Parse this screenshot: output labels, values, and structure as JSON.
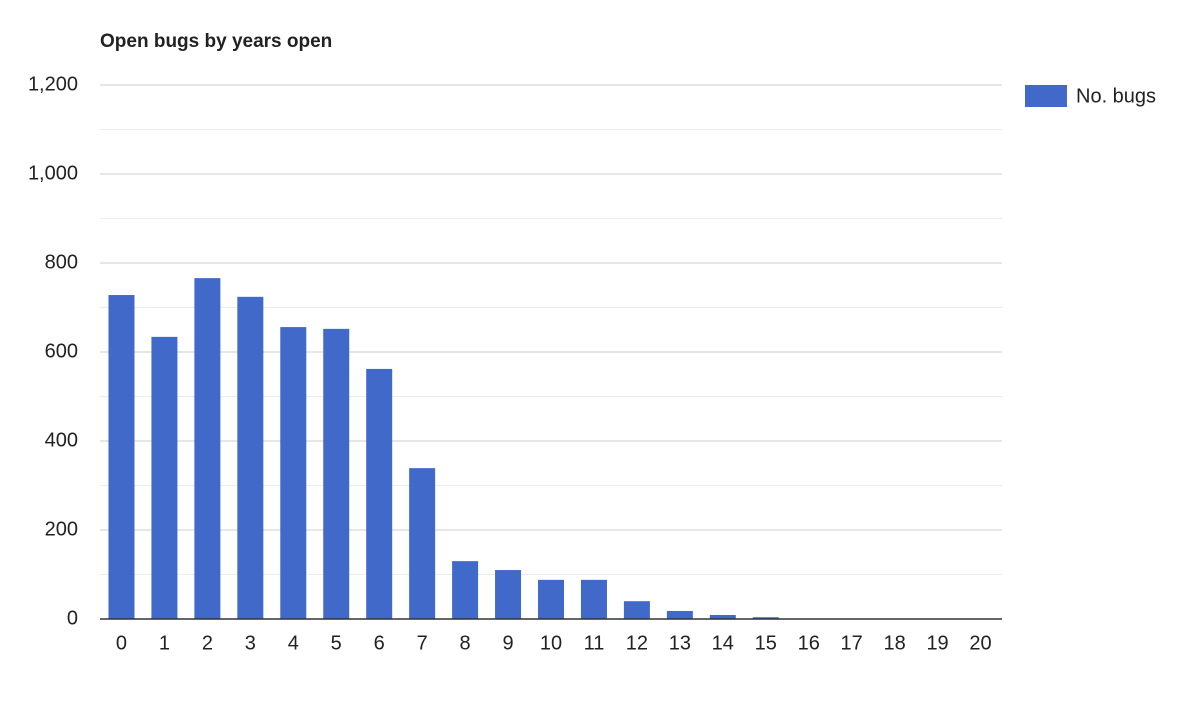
{
  "chart_data": {
    "type": "bar",
    "title": "Open bugs by years open",
    "categories": [
      "0",
      "1",
      "2",
      "3",
      "4",
      "5",
      "6",
      "7",
      "8",
      "9",
      "10",
      "11",
      "12",
      "13",
      "14",
      "15",
      "16",
      "17",
      "18",
      "19",
      "20"
    ],
    "series": [
      {
        "name": "No. bugs",
        "color": "#4169c9",
        "values": [
          728,
          634,
          766,
          724,
          656,
          652,
          562,
          339,
          130,
          110,
          88,
          88,
          40,
          18,
          9,
          4,
          1,
          1,
          0,
          0,
          0
        ]
      }
    ],
    "ylim": [
      0,
      1200
    ],
    "yticks": [
      0,
      200,
      400,
      600,
      800,
      {
        "value": 1000,
        "label": "1,000"
      },
      {
        "value": 1200,
        "label": "1,200"
      }
    ],
    "minor_yticks": [
      100,
      300,
      500,
      700,
      900,
      1100
    ],
    "grid": true,
    "legend": "right"
  }
}
